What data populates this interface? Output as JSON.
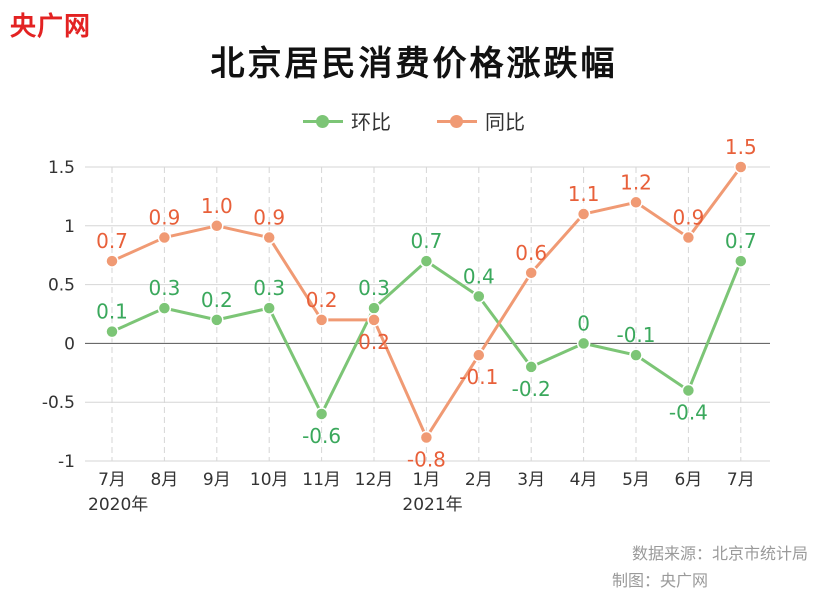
{
  "brand": "央广网",
  "chart_data": {
    "type": "line",
    "title": "北京居民消费价格涨跌幅",
    "categories": [
      "7月",
      "8月",
      "9月",
      "10月",
      "11月",
      "12月",
      "1月",
      "2月",
      "3月",
      "4月",
      "5月",
      "6月",
      "7月"
    ],
    "year_labels": [
      {
        "index": 0,
        "label": "2020年"
      },
      {
        "index": 6,
        "label": "2021年"
      }
    ],
    "ylim": [
      -1,
      1.5
    ],
    "yticks": [
      -1,
      -0.5,
      0,
      0.5,
      1,
      1.5
    ],
    "ytick_labels": [
      "-1",
      "-0.5",
      "0",
      "0.5",
      "1",
      "1.5"
    ],
    "grid": true,
    "legend_position": "top-center",
    "series": [
      {
        "name": "环比",
        "color": "#7cc576",
        "label_color": "#3aa85c",
        "values": [
          0.1,
          0.3,
          0.2,
          0.3,
          -0.6,
          0.3,
          0.7,
          0.4,
          -0.2,
          0,
          -0.1,
          -0.4,
          0.7
        ],
        "labels": [
          "0.1",
          "0.3",
          "0.2",
          "0.3",
          "-0.6",
          "0.3",
          "0.7",
          "0.4",
          "-0.2",
          "0",
          "-0.1",
          "-0.4",
          "0.7"
        ]
      },
      {
        "name": "同比",
        "color": "#f09a74",
        "label_color": "#e8603a",
        "values": [
          0.7,
          0.9,
          1.0,
          0.9,
          0.2,
          0.2,
          -0.8,
          -0.1,
          0.6,
          1.1,
          1.2,
          0.9,
          1.5
        ],
        "labels": [
          "0.7",
          "0.9",
          "1.0",
          "0.9",
          "0.2",
          "0.2",
          "-0.8",
          "-0.1",
          "0.6",
          "1.1",
          "1.2",
          "0.9",
          "1.5"
        ]
      }
    ]
  },
  "footer": {
    "source": "数据来源：北京市统计局",
    "maker": "制图：央广网"
  }
}
